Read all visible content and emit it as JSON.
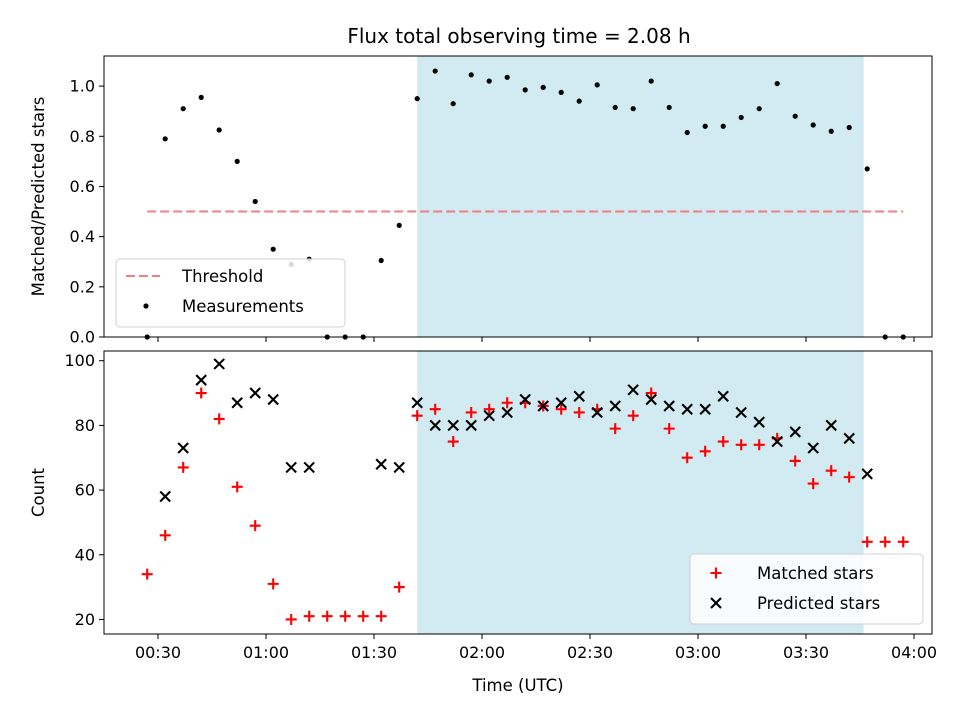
{
  "colors": {
    "threshold": "#f08080",
    "measurement": "#000000",
    "matched": "#ff0000",
    "predicted": "#000000",
    "observing_window": "#add8e6"
  },
  "chart_data": [
    {
      "type": "scatter",
      "title": "Flux total observing time = 2.08 h",
      "xlabel": "",
      "ylabel": "Matched/Predicted stars",
      "xlim": [
        "00:15",
        "04:05"
      ],
      "ylim": [
        0,
        1.12
      ],
      "yticks": [
        0.0,
        0.2,
        0.4,
        0.6,
        0.8,
        1.0
      ],
      "ytick_labels": [
        "0.0",
        "0.2",
        "0.4",
        "0.6",
        "0.8",
        "1.0"
      ],
      "shaded_region": {
        "start": "01:42",
        "end": "03:46"
      },
      "legend": {
        "position": "lower-left",
        "entries": [
          "Threshold",
          "Measurements"
        ]
      },
      "series": [
        {
          "name": "Threshold",
          "kind": "dashed-line",
          "x": [
            "00:27",
            "03:57"
          ],
          "y": [
            0.5,
            0.5
          ]
        },
        {
          "name": "Measurements",
          "kind": "dot",
          "x": [
            "00:27",
            "00:32",
            "00:37",
            "00:42",
            "00:47",
            "00:52",
            "00:57",
            "01:02",
            "01:07",
            "01:12",
            "01:17",
            "01:22",
            "01:27",
            "01:32",
            "01:37",
            "01:42",
            "01:47",
            "01:52",
            "01:57",
            "02:02",
            "02:07",
            "02:12",
            "02:17",
            "02:22",
            "02:27",
            "02:32",
            "02:37",
            "02:42",
            "02:47",
            "02:52",
            "02:57",
            "03:02",
            "03:07",
            "03:12",
            "03:17",
            "03:22",
            "03:27",
            "03:32",
            "03:37",
            "03:42",
            "03:47",
            "03:52",
            "03:57"
          ],
          "y": [
            0.0,
            0.79,
            0.91,
            0.955,
            0.825,
            0.7,
            0.54,
            0.35,
            0.29,
            0.31,
            0.0,
            0.0,
            0.0,
            0.305,
            0.445,
            0.95,
            1.06,
            0.93,
            1.045,
            1.02,
            1.035,
            0.985,
            0.995,
            0.975,
            0.94,
            1.005,
            0.915,
            0.91,
            1.02,
            0.915,
            0.815,
            0.84,
            0.84,
            0.875,
            0.91,
            1.01,
            0.88,
            0.845,
            0.82,
            0.835,
            0.67,
            0.0,
            0.0
          ]
        }
      ]
    },
    {
      "type": "scatter",
      "title": "",
      "xlabel": "Time (UTC)",
      "ylabel": "Count",
      "xlim": [
        "00:15",
        "04:05"
      ],
      "ylim": [
        15.5,
        103
      ],
      "xtick_labels": [
        "00:30",
        "01:00",
        "01:30",
        "02:00",
        "02:30",
        "03:00",
        "03:30",
        "04:00"
      ],
      "yticks": [
        20,
        40,
        60,
        80,
        100
      ],
      "ytick_labels": [
        "20",
        "40",
        "60",
        "80",
        "100"
      ],
      "shaded_region": {
        "start": "01:42",
        "end": "03:46"
      },
      "legend": {
        "position": "lower-right",
        "entries": [
          "Matched stars",
          "Predicted stars"
        ]
      },
      "series": [
        {
          "name": "Matched stars",
          "kind": "plus",
          "x": [
            "00:27",
            "00:32",
            "00:37",
            "00:42",
            "00:47",
            "00:52",
            "00:57",
            "01:02",
            "01:07",
            "01:12",
            "01:17",
            "01:22",
            "01:27",
            "01:32",
            "01:37",
            "01:42",
            "01:47",
            "01:52",
            "01:57",
            "02:02",
            "02:07",
            "02:12",
            "02:17",
            "02:22",
            "02:27",
            "02:32",
            "02:37",
            "02:42",
            "02:47",
            "02:52",
            "02:57",
            "03:02",
            "03:07",
            "03:12",
            "03:17",
            "03:22",
            "03:27",
            "03:32",
            "03:37",
            "03:42",
            "03:47",
            "03:52",
            "03:57"
          ],
          "y": [
            34,
            46,
            67,
            90,
            82,
            61,
            49,
            31,
            20,
            21,
            21,
            21,
            21,
            21,
            30,
            83,
            85,
            75,
            84,
            85,
            87,
            87,
            86,
            85,
            84,
            85,
            79,
            83,
            90,
            79,
            70,
            72,
            75,
            74,
            74,
            76,
            69,
            62,
            66,
            64,
            44,
            44,
            44
          ]
        },
        {
          "name": "Predicted stars",
          "kind": "x",
          "x": [
            "00:32",
            "00:37",
            "00:42",
            "00:47",
            "00:52",
            "00:57",
            "01:02",
            "01:07",
            "01:12",
            "01:32",
            "01:37",
            "01:42",
            "01:47",
            "01:52",
            "01:57",
            "02:02",
            "02:07",
            "02:12",
            "02:17",
            "02:22",
            "02:27",
            "02:32",
            "02:37",
            "02:42",
            "02:47",
            "02:52",
            "02:57",
            "03:02",
            "03:07",
            "03:12",
            "03:17",
            "03:22",
            "03:27",
            "03:32",
            "03:37",
            "03:42",
            "03:47"
          ],
          "y": [
            58,
            73,
            94,
            99,
            87,
            90,
            88,
            67,
            67,
            68,
            67,
            87,
            80,
            80,
            80,
            83,
            84,
            88,
            86,
            87,
            89,
            84,
            86,
            91,
            88,
            86,
            85,
            85,
            89,
            84,
            81,
            75,
            78,
            73,
            80,
            76,
            65
          ]
        }
      ]
    }
  ]
}
